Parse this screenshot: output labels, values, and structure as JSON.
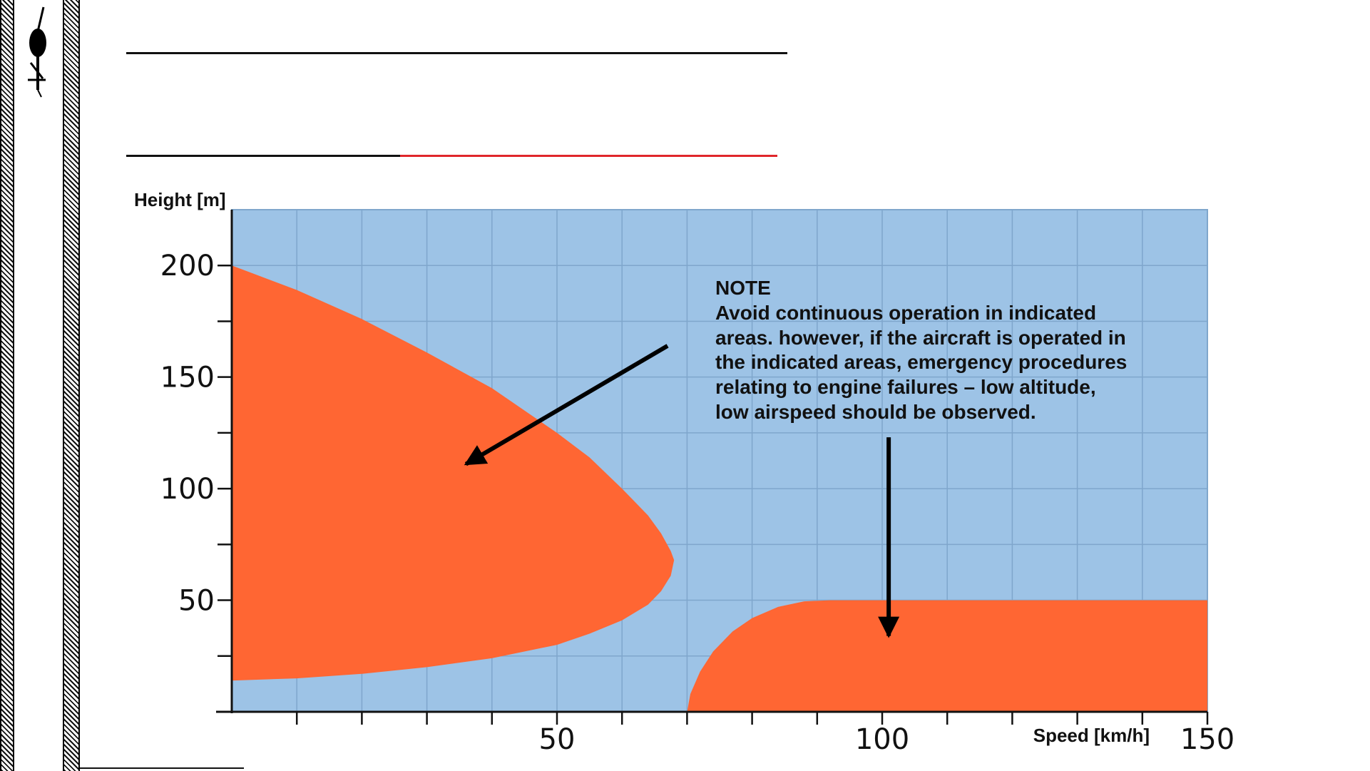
{
  "colors": {
    "plot_background": "#9dc3e6",
    "avoid_area": "#ff6633",
    "grid": "#7fa6cc",
    "accent_line": "#e0262b"
  },
  "icons": {
    "logo": "helicopter-icon"
  },
  "chart_data": {
    "type": "area",
    "xlabel": "Speed [km/h]",
    "ylabel": "Height [m]",
    "xlim": [
      0,
      150
    ],
    "ylim": [
      0,
      225
    ],
    "x_ticks": [
      50,
      100,
      150
    ],
    "y_ticks": [
      50,
      100,
      150,
      200
    ],
    "grid": true,
    "series": [
      {
        "x": [
          0,
          10,
          20,
          30,
          40,
          50,
          55,
          60,
          64,
          66,
          67.5,
          68,
          67.5,
          66,
          64,
          60,
          55,
          50,
          40,
          30,
          20,
          10,
          0
        ],
        "y": [
          200,
          189,
          176,
          161,
          145,
          125,
          114,
          100,
          88,
          80,
          72,
          68,
          61,
          54,
          48,
          41,
          35,
          30,
          24,
          20,
          17,
          15,
          14
        ]
      },
      {
        "x": [
          70,
          70.5,
          72,
          74,
          77,
          80,
          84,
          88,
          92,
          100,
          150,
          150
        ],
        "y": [
          0,
          8,
          18,
          27,
          36,
          42,
          47,
          49.5,
          50,
          50,
          50,
          0
        ]
      }
    ],
    "annotation": {
      "heading": "NOTE",
      "lines": [
        "Avoid continuous operation in indicated",
        "areas. however, if the aircraft is operated in",
        "the indicated areas, emergency procedures",
        "relating to engine failures – low altitude,",
        "low airspeed should be observed."
      ]
    },
    "arrows": [
      {
        "from": [
          67,
          164
        ],
        "to": [
          36,
          111
        ]
      },
      {
        "from": [
          101,
          123
        ],
        "to": [
          101,
          34
        ]
      }
    ]
  }
}
